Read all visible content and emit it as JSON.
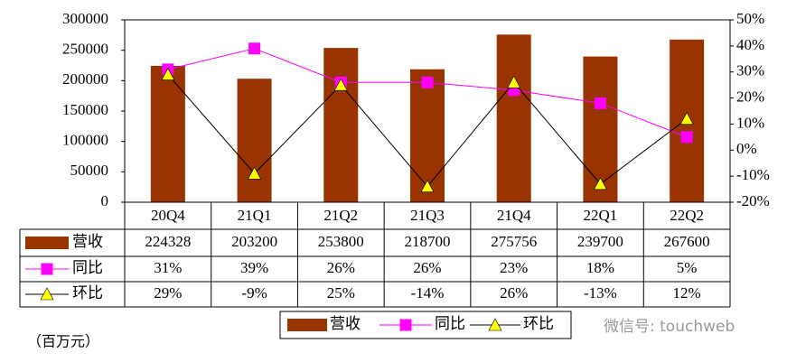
{
  "chart_data": {
    "type": "bar",
    "categories": [
      "20Q4",
      "21Q1",
      "21Q2",
      "21Q3",
      "21Q4",
      "22Q1",
      "22Q2"
    ],
    "series": [
      {
        "name": "营收",
        "type": "bar",
        "color": "#993300",
        "values": [
          224328,
          203200,
          253800,
          218700,
          275756,
          239700,
          267600
        ]
      },
      {
        "name": "同比",
        "type": "line",
        "axis": "y2",
        "color": "#FF00FF",
        "marker": "square",
        "values": [
          31,
          39,
          26,
          26,
          23,
          18,
          5
        ],
        "value_labels": [
          "31%",
          "39%",
          "26%",
          "26%",
          "23%",
          "18%",
          "5%"
        ]
      },
      {
        "name": "环比",
        "type": "line",
        "axis": "y2",
        "color": "#000000",
        "marker_color": "#FFFF00",
        "marker": "triangle",
        "values": [
          29,
          -9,
          25,
          -14,
          26,
          -13,
          12
        ],
        "value_labels": [
          "29%",
          "-9%",
          "25%",
          "-14%",
          "26%",
          "-13%",
          "12%"
        ]
      }
    ],
    "ylim": [
      0,
      300000
    ],
    "yticks": [
      0,
      50000,
      100000,
      150000,
      200000,
      250000,
      300000
    ],
    "y2lim": [
      -20,
      50
    ],
    "y2ticks": [
      {
        "value": -20,
        "label": "-20%"
      },
      {
        "value": -10,
        "label": "-10%"
      },
      {
        "value": 0,
        "label": "0%"
      },
      {
        "value": 10,
        "label": "10%"
      },
      {
        "value": 20,
        "label": "20%"
      },
      {
        "value": 30,
        "label": "30%"
      },
      {
        "value": 40,
        "label": "40%"
      },
      {
        "value": 50,
        "label": "50%"
      }
    ],
    "unit_note": "（百万元）",
    "watermark": "微信号: touchweb"
  }
}
